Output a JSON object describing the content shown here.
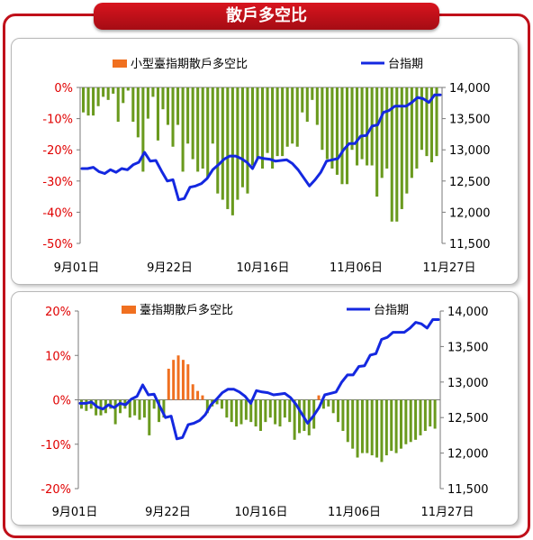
{
  "header": {
    "title": "散戶多空比"
  },
  "colors": {
    "border": "#c0101a",
    "bar_positive": "#f07020",
    "bar_negative": "#6a9a1e",
    "line": "#1428e0",
    "left_axis_text": "#e00000"
  },
  "chart_data": [
    {
      "type": "bar+line",
      "title": "",
      "x_tick_labels": [
        "9月01日",
        "9月22日",
        "10月16日",
        "11月06日",
        "11月27日"
      ],
      "left_axis": {
        "ylim": [
          -50,
          0
        ],
        "tick_labels": [
          "0%",
          "-10%",
          "-20%",
          "-30%",
          "-40%",
          "-50%"
        ]
      },
      "right_axis": {
        "ylim": [
          11500,
          14000
        ],
        "tick_labels": [
          "14,000",
          "13,500",
          "13,000",
          "12,500",
          "12,000",
          "11,500"
        ]
      },
      "legend": [
        "小型臺指期散戶多空比",
        "台指期"
      ],
      "series": [
        {
          "name": "小型臺指期散戶多空比",
          "type": "bar",
          "axis": "left",
          "values": [
            -8,
            -9,
            -9,
            -6,
            -3,
            -4,
            -2,
            -11,
            -5,
            -1,
            -11,
            -16,
            -27,
            -10,
            -3,
            -17,
            -7,
            -12,
            -19,
            -12,
            -27,
            -18,
            -23,
            -27,
            -26,
            -29,
            -18,
            -34,
            -36,
            -39,
            -41,
            -36,
            -32,
            -34,
            -25,
            -23,
            -26,
            -21,
            -26,
            -22,
            -22,
            -19,
            -18,
            -19,
            -8,
            -11,
            -4,
            -12,
            -20,
            -23,
            -26,
            -28,
            -31,
            -31,
            -20,
            -25,
            -23,
            -25,
            -25,
            -35,
            -29,
            -26,
            -43,
            -43,
            -39,
            -34,
            -29,
            -26,
            -20,
            -22,
            -24,
            -22
          ]
        },
        {
          "name": "台指期",
          "type": "line",
          "axis": "right",
          "values": [
            12700,
            12700,
            12720,
            12650,
            12620,
            12680,
            12640,
            12700,
            12680,
            12760,
            12800,
            12960,
            12820,
            12830,
            12660,
            12500,
            12520,
            12200,
            12220,
            12400,
            12420,
            12460,
            12540,
            12680,
            12760,
            12850,
            12900,
            12900,
            12860,
            12800,
            12700,
            12880,
            12860,
            12850,
            12820,
            12830,
            12840,
            12780,
            12680,
            12550,
            12420,
            12520,
            12640,
            12820,
            12840,
            12860,
            13000,
            13100,
            13100,
            13220,
            13230,
            13380,
            13400,
            13600,
            13630,
            13700,
            13700,
            13700,
            13760,
            13840,
            13820,
            13760,
            13880,
            13880
          ]
        }
      ]
    },
    {
      "type": "bar+line",
      "title": "",
      "x_tick_labels": [
        "9月01日",
        "9月22日",
        "10月16日",
        "11月06日",
        "11月27日"
      ],
      "left_axis": {
        "ylim": [
          -20,
          20
        ],
        "tick_labels": [
          "20%",
          "10%",
          "0%",
          "-10%",
          "-20%"
        ]
      },
      "right_axis": {
        "ylim": [
          11500,
          14000
        ],
        "tick_labels": [
          "14,000",
          "13,500",
          "13,000",
          "12,500",
          "12,000",
          "11,500"
        ]
      },
      "legend": [
        "臺指期散戶多空比",
        "台指期"
      ],
      "series": [
        {
          "name": "臺指期散戶多空比",
          "type": "bar",
          "axis": "left",
          "values": [
            -2,
            -2.5,
            -2,
            -3.5,
            -3.5,
            -3,
            -2,
            -5.5,
            -3,
            -2,
            -4,
            -3.5,
            -4.5,
            -4,
            -8,
            -2,
            -5,
            -4,
            7,
            9,
            10,
            9,
            8,
            3.5,
            2,
            1,
            -3,
            -1.5,
            -1,
            -2,
            -4,
            -5,
            -6,
            -5.5,
            -4.5,
            -5,
            -6,
            -7,
            -5,
            -4,
            -5.5,
            -6,
            -4,
            -5,
            -9,
            -7.5,
            -7,
            -8,
            -6.5,
            1,
            -2,
            -1.5,
            -3,
            -5,
            -7,
            -9.5,
            -11,
            -13,
            -12,
            -12,
            -12.5,
            -13,
            -14,
            -12.5,
            -11.5,
            -12,
            -11,
            -10,
            -9.5,
            -9,
            -8,
            -7,
            -6,
            -6.5
          ]
        },
        {
          "name": "台指期",
          "type": "line",
          "axis": "right",
          "values": [
            12700,
            12700,
            12720,
            12650,
            12620,
            12680,
            12640,
            12700,
            12680,
            12760,
            12800,
            12960,
            12820,
            12830,
            12660,
            12500,
            12520,
            12200,
            12220,
            12400,
            12420,
            12460,
            12540,
            12680,
            12760,
            12850,
            12900,
            12900,
            12860,
            12800,
            12700,
            12880,
            12860,
            12850,
            12820,
            12830,
            12840,
            12780,
            12680,
            12550,
            12420,
            12520,
            12640,
            12820,
            12840,
            12860,
            13000,
            13100,
            13100,
            13220,
            13230,
            13380,
            13400,
            13600,
            13630,
            13700,
            13700,
            13700,
            13760,
            13840,
            13820,
            13760,
            13880,
            13880
          ]
        }
      ]
    }
  ]
}
